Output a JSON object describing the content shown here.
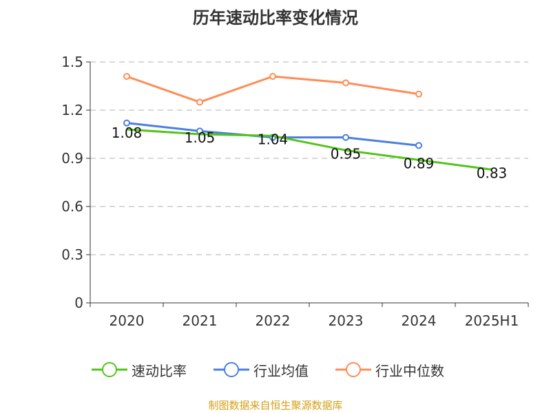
{
  "chart_data": {
    "type": "line",
    "title": "历年速动比率变化情况",
    "categories": [
      "2020",
      "2021",
      "2022",
      "2023",
      "2024",
      "2025H1"
    ],
    "ylim": [
      0,
      1.5
    ],
    "yticks": [
      "0",
      "0.3",
      "0.6",
      "0.9",
      "1.2",
      "1.5"
    ],
    "grid": true,
    "legend_position": "bottom",
    "series": [
      {
        "name": "速动比率",
        "color": "#52c41a",
        "values": [
          1.08,
          1.05,
          1.04,
          0.95,
          0.89,
          0.83
        ],
        "labels": [
          "1.08",
          "1.05",
          "1.04",
          "0.95",
          "0.89",
          "0.83"
        ],
        "show_markers": false
      },
      {
        "name": "行业均值",
        "color": "#4a7fe0",
        "values": [
          1.12,
          1.07,
          1.03,
          1.03,
          0.98,
          null
        ],
        "show_markers": true
      },
      {
        "name": "行业中位数",
        "color": "#ff8c55",
        "values": [
          1.41,
          1.25,
          1.41,
          1.37,
          1.3,
          null
        ],
        "show_markers": true
      }
    ]
  },
  "source": "制图数据来自恒生聚源数据库"
}
